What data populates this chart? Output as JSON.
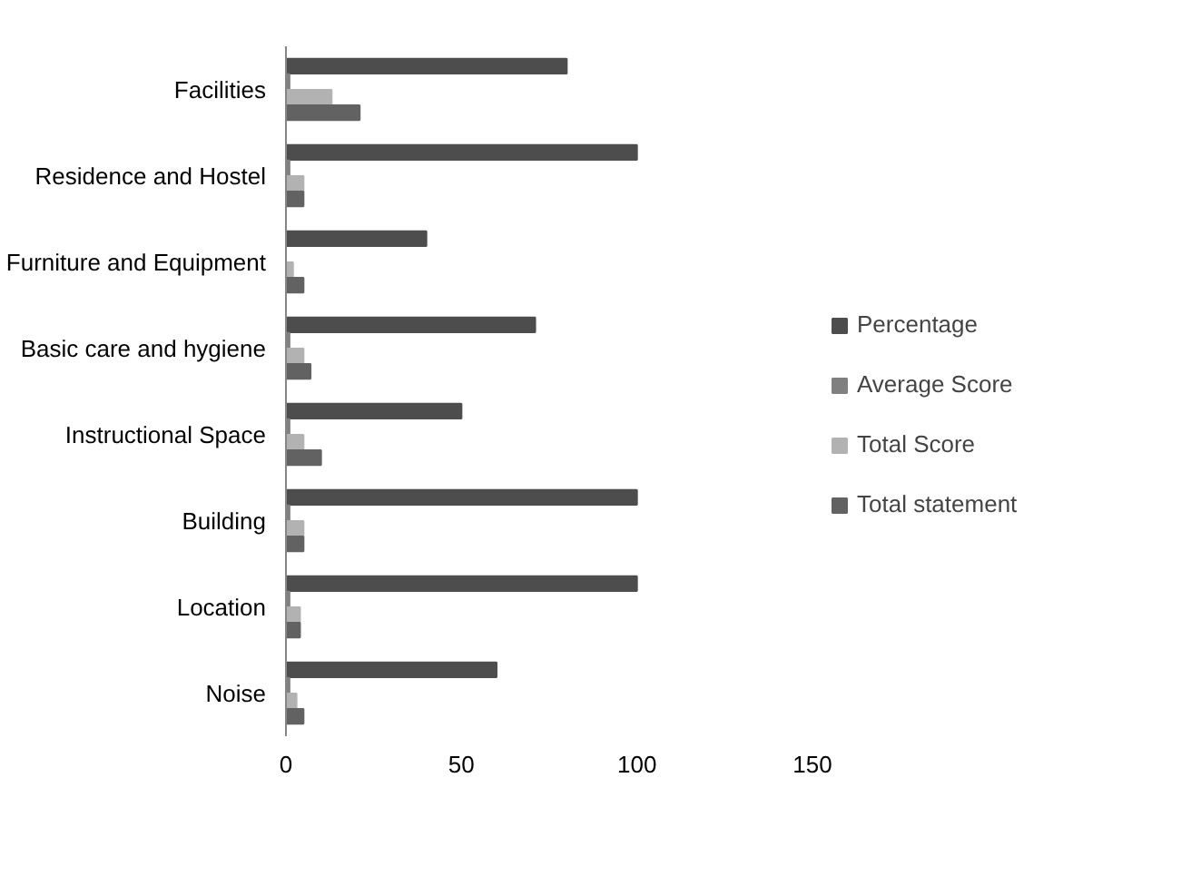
{
  "chart_data": {
    "type": "bar",
    "orientation": "horizontal",
    "categories": [
      "Facilities",
      "Residence and Hostel",
      "Furniture and Equipment",
      "Basic care and hygiene",
      "Instructional Space",
      "Building",
      "Location",
      "Noise"
    ],
    "series": [
      {
        "name": "Percentage",
        "color": "#4d4d4d",
        "values": [
          80,
          100,
          40,
          71,
          50,
          100,
          100,
          60
        ]
      },
      {
        "name": "Average Score",
        "color": "#808080",
        "values": [
          1,
          1,
          0,
          1,
          1,
          1,
          1,
          1
        ]
      },
      {
        "name": "Total Score",
        "color": "#b2b2b2",
        "values": [
          13,
          5,
          2,
          5,
          5,
          5,
          4,
          3
        ]
      },
      {
        "name": "Total statement",
        "color": "#626262",
        "values": [
          21,
          5,
          5,
          7,
          10,
          5,
          4,
          5
        ]
      }
    ],
    "xlim": [
      0,
      150
    ],
    "xticks": [
      0,
      50,
      100,
      150
    ],
    "grid": false,
    "legend": "right"
  }
}
